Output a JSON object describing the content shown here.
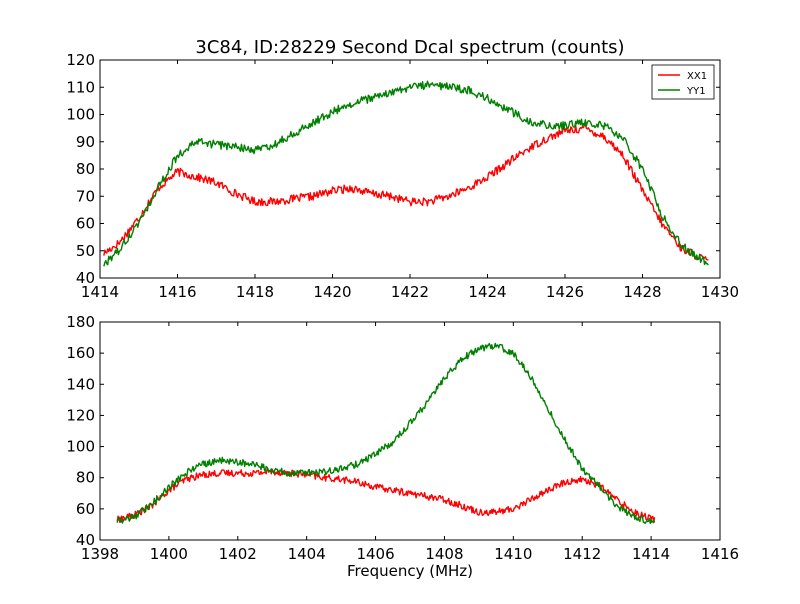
{
  "figure": {
    "title": "3C84, ID:28229 Second Dcal spectrum (counts)",
    "xlabel": "Frequency (MHz)"
  },
  "chart_data": [
    {
      "type": "line",
      "title": "3C84, ID:28229 Second Dcal spectrum (counts)",
      "xlabel": "",
      "ylabel": "",
      "xlim": [
        1414,
        1430
      ],
      "ylim": [
        40,
        120
      ],
      "xticks": [
        1414,
        1416,
        1418,
        1420,
        1422,
        1424,
        1426,
        1428,
        1430
      ],
      "yticks": [
        40,
        50,
        60,
        70,
        80,
        90,
        100,
        110,
        120
      ],
      "grid": false,
      "legend": {
        "placement": "top-right",
        "entries": [
          "XX1",
          "YY1"
        ]
      },
      "x_range": [
        1414.1,
        1429.7
      ],
      "series": [
        {
          "name": "XX1",
          "color": "#ff0000",
          "x": [
            1414.1,
            1414.5,
            1415.0,
            1415.5,
            1416.0,
            1416.5,
            1417.0,
            1417.5,
            1418.0,
            1418.5,
            1419.0,
            1419.5,
            1420.0,
            1420.5,
            1421.0,
            1421.5,
            1422.0,
            1422.5,
            1423.0,
            1423.5,
            1424.0,
            1424.5,
            1425.0,
            1425.5,
            1426.0,
            1426.5,
            1427.0,
            1427.5,
            1428.0,
            1428.5,
            1429.0,
            1429.7
          ],
          "y": [
            49,
            53,
            62,
            73,
            79,
            77,
            75,
            71,
            68,
            68,
            69,
            70,
            72,
            73,
            71,
            70,
            68,
            68,
            70,
            73,
            77,
            82,
            87,
            91,
            94,
            95,
            92,
            85,
            72,
            60,
            51,
            46
          ]
        },
        {
          "name": "YY1",
          "color": "#008000",
          "x": [
            1414.1,
            1414.5,
            1415.0,
            1415.5,
            1416.0,
            1416.5,
            1417.0,
            1417.5,
            1418.0,
            1418.5,
            1419.0,
            1419.5,
            1420.0,
            1420.5,
            1421.0,
            1421.5,
            1422.0,
            1422.5,
            1423.0,
            1423.5,
            1424.0,
            1424.5,
            1425.0,
            1425.5,
            1426.0,
            1426.5,
            1427.0,
            1427.5,
            1428.0,
            1428.5,
            1429.0,
            1429.7
          ],
          "y": [
            45,
            50,
            60,
            73,
            85,
            90,
            89,
            88,
            87,
            89,
            93,
            97,
            101,
            104,
            106,
            108,
            110,
            111,
            110,
            109,
            106,
            102,
            98,
            96,
            96,
            97,
            96,
            91,
            80,
            63,
            52,
            45
          ]
        }
      ]
    },
    {
      "type": "line",
      "title": "",
      "xlabel": "Frequency (MHz)",
      "ylabel": "",
      "xlim": [
        1398,
        1416
      ],
      "ylim": [
        40,
        180
      ],
      "xticks": [
        1398,
        1400,
        1402,
        1404,
        1406,
        1408,
        1410,
        1412,
        1414,
        1416
      ],
      "yticks": [
        40,
        60,
        80,
        100,
        120,
        140,
        160,
        180
      ],
      "grid": false,
      "x_range": [
        1398.5,
        1414.1
      ],
      "series": [
        {
          "color": "#ff0000",
          "x": [
            1398.5,
            1399.0,
            1399.5,
            1400.0,
            1400.5,
            1401.0,
            1401.5,
            1402.0,
            1402.5,
            1403.0,
            1403.5,
            1404.0,
            1404.5,
            1405.0,
            1405.5,
            1406.0,
            1406.5,
            1407.0,
            1407.5,
            1408.0,
            1408.5,
            1409.0,
            1409.5,
            1410.0,
            1410.5,
            1411.0,
            1411.5,
            1412.0,
            1412.5,
            1413.0,
            1413.5,
            1414.1
          ],
          "y": [
            53,
            56,
            62,
            72,
            79,
            82,
            83,
            83,
            83,
            84,
            83,
            82,
            80,
            79,
            77,
            74,
            72,
            70,
            68,
            66,
            62,
            58,
            58,
            60,
            66,
            72,
            77,
            79,
            75,
            66,
            58,
            53
          ]
        },
        {
          "color": "#008000",
          "x": [
            1398.5,
            1399.0,
            1399.5,
            1400.0,
            1400.5,
            1401.0,
            1401.5,
            1402.0,
            1402.5,
            1403.0,
            1403.5,
            1404.0,
            1404.5,
            1405.0,
            1405.5,
            1406.0,
            1406.5,
            1407.0,
            1407.5,
            1408.0,
            1408.5,
            1409.0,
            1409.5,
            1410.0,
            1410.5,
            1411.0,
            1411.5,
            1412.0,
            1412.5,
            1413.0,
            1413.5,
            1414.1
          ],
          "y": [
            52,
            55,
            63,
            74,
            83,
            89,
            91,
            90,
            88,
            85,
            83,
            83,
            84,
            86,
            89,
            95,
            103,
            115,
            128,
            144,
            156,
            163,
            165,
            160,
            145,
            125,
            104,
            86,
            74,
            62,
            55,
            51
          ]
        }
      ]
    }
  ]
}
